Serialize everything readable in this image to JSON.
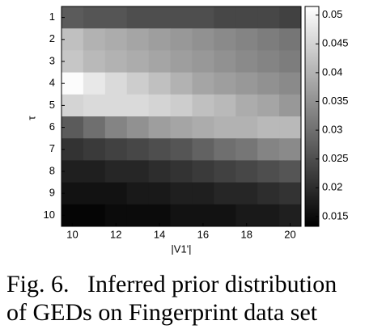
{
  "chart_data": {
    "type": "heatmap",
    "xlabel": "|V1'|",
    "ylabel": "τ",
    "x_categories": [
      10,
      null,
      12,
      null,
      14,
      null,
      16,
      null,
      18,
      null,
      20
    ],
    "y_categories": [
      1,
      2,
      3,
      4,
      5,
      6,
      7,
      8,
      9,
      10
    ],
    "values": [
      [
        0.027,
        0.026,
        0.026,
        0.025,
        0.025,
        0.025,
        0.025,
        0.024,
        0.024,
        0.024,
        0.023
      ],
      [
        0.042,
        0.04,
        0.039,
        0.038,
        0.037,
        0.036,
        0.035,
        0.034,
        0.033,
        0.032,
        0.031
      ],
      [
        0.043,
        0.041,
        0.04,
        0.039,
        0.038,
        0.037,
        0.036,
        0.035,
        0.034,
        0.033,
        0.032
      ],
      [
        0.051,
        0.048,
        0.046,
        0.044,
        0.042,
        0.04,
        0.038,
        0.037,
        0.036,
        0.035,
        0.034
      ],
      [
        0.045,
        0.046,
        0.046,
        0.046,
        0.045,
        0.044,
        0.042,
        0.041,
        0.039,
        0.038,
        0.036
      ],
      [
        0.027,
        0.03,
        0.033,
        0.035,
        0.037,
        0.038,
        0.039,
        0.04,
        0.04,
        0.041,
        0.041
      ],
      [
        0.021,
        0.022,
        0.023,
        0.024,
        0.025,
        0.026,
        0.028,
        0.03,
        0.031,
        0.033,
        0.034
      ],
      [
        0.018,
        0.018,
        0.019,
        0.019,
        0.02,
        0.021,
        0.022,
        0.023,
        0.024,
        0.025,
        0.026
      ],
      [
        0.016,
        0.016,
        0.016,
        0.017,
        0.017,
        0.018,
        0.018,
        0.019,
        0.019,
        0.02,
        0.021
      ],
      [
        0.014,
        0.014,
        0.015,
        0.015,
        0.015,
        0.016,
        0.016,
        0.016,
        0.017,
        0.017,
        0.018
      ]
    ],
    "colormap": "gray",
    "clim": [
      0.0133,
      0.0515
    ],
    "cticks": [
      0.015,
      0.02,
      0.025,
      0.03,
      0.035,
      0.04,
      0.045,
      0.05
    ],
    "caption": [
      "Fig. 6.   Inferred prior distribution",
      "of GEDs on Fingerprint data set"
    ]
  }
}
